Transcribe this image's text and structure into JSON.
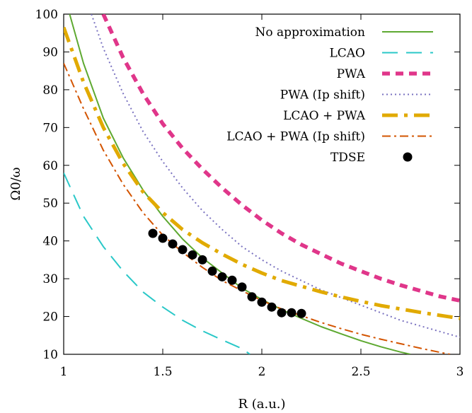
{
  "chart_data": {
    "type": "line",
    "xlabel": "R (a.u.)",
    "ylabel": "Ω0/ω",
    "xlim": [
      1,
      3
    ],
    "ylim": [
      10,
      100
    ],
    "x_ticks": [
      "1",
      "1.5",
      "2",
      "2.5",
      "3"
    ],
    "y_ticks": [
      "10",
      "20",
      "30",
      "40",
      "50",
      "60",
      "70",
      "80",
      "90",
      "100"
    ],
    "grid": false,
    "legend_position": "top-right",
    "series": [
      {
        "name": "No approximation",
        "style": "solid",
        "color": "#5ea931",
        "kind": "line",
        "x": [
          1.03,
          1.1,
          1.2,
          1.3,
          1.4,
          1.5,
          1.6,
          1.7,
          1.8,
          1.9,
          2.0,
          2.1,
          2.2,
          2.3,
          2.4,
          2.5,
          2.6,
          2.7,
          2.75
        ],
        "y": [
          100,
          87,
          72.5,
          62,
          53.5,
          46.5,
          40.5,
          35.5,
          31.5,
          27.5,
          24.5,
          21.8,
          19.5,
          17.3,
          15.4,
          13.6,
          12.0,
          10.6,
          10
        ]
      },
      {
        "name": "LCAO",
        "style": "dashed",
        "color": "#2ac8c8",
        "kind": "line",
        "x": [
          1.0,
          1.1,
          1.2,
          1.3,
          1.4,
          1.5,
          1.6,
          1.7,
          1.8,
          1.9,
          1.94
        ],
        "y": [
          58,
          46.5,
          38.5,
          32,
          26.5,
          22.5,
          19,
          16.2,
          13.8,
          11.5,
          10
        ]
      },
      {
        "name": "PWA",
        "style": "dashed",
        "color": "#e0368a",
        "kind": "line",
        "x": [
          1.2,
          1.3,
          1.4,
          1.5,
          1.6,
          1.7,
          1.8,
          1.9,
          2.0,
          2.1,
          2.2,
          2.3,
          2.4,
          2.5,
          2.6,
          2.7,
          2.8,
          2.9,
          3.0
        ],
        "y": [
          100,
          88.5,
          79,
          71,
          64.5,
          59,
          54,
          49.5,
          45.5,
          42,
          39,
          36.5,
          34,
          32,
          30,
          28.3,
          26.8,
          25.3,
          24.2
        ]
      },
      {
        "name": "PWA (Ip shift)",
        "style": "dotted",
        "color": "#7a72c0",
        "kind": "line",
        "x": [
          1.14,
          1.2,
          1.3,
          1.4,
          1.5,
          1.6,
          1.7,
          1.8,
          1.9,
          2.0,
          2.1,
          2.2,
          2.3,
          2.4,
          2.5,
          2.6,
          2.7,
          2.8,
          2.9,
          3.0
        ],
        "y": [
          100,
          91,
          79,
          69,
          61,
          54,
          48,
          43,
          38.5,
          35,
          32,
          29.5,
          27,
          25,
          23,
          21,
          19,
          17.5,
          16,
          14.5
        ]
      },
      {
        "name": "LCAO + PWA",
        "style": "dashdot",
        "color": "#e1aa00",
        "kind": "line",
        "x": [
          1.0,
          1.1,
          1.2,
          1.3,
          1.4,
          1.5,
          1.6,
          1.7,
          1.8,
          1.9,
          2.0,
          2.1,
          2.2,
          2.3,
          2.4,
          2.5,
          2.6,
          2.7,
          2.8,
          2.9,
          3.0
        ],
        "y": [
          96.5,
          82,
          70,
          60.5,
          53,
          47.5,
          43,
          39.5,
          36.5,
          33.8,
          31.5,
          29.5,
          28,
          26.5,
          25.2,
          24,
          22.9,
          22,
          21.1,
          20.3,
          19.5
        ]
      },
      {
        "name": "LCAO + PWA (Ip shift)",
        "style": "dashdot-thin",
        "color": "#d35400",
        "kind": "line",
        "x": [
          1.0,
          1.1,
          1.2,
          1.3,
          1.4,
          1.5,
          1.6,
          1.7,
          1.8,
          1.9,
          2.0,
          2.1,
          2.2,
          2.3,
          2.4,
          2.5,
          2.6,
          2.7,
          2.8,
          2.9,
          2.95
        ],
        "y": [
          87,
          75,
          64,
          55,
          47.5,
          41.5,
          37,
          33,
          29.5,
          26.8,
          24.2,
          22,
          20.2,
          18.4,
          16.8,
          15.3,
          14,
          12.8,
          11.6,
          10.5,
          10
        ]
      },
      {
        "name": "TDSE",
        "style": "marker",
        "color": "#000000",
        "kind": "scatter",
        "x": [
          1.45,
          1.5,
          1.55,
          1.6,
          1.65,
          1.7,
          1.75,
          1.8,
          1.85,
          1.9,
          1.95,
          2.0,
          2.05,
          2.1,
          2.15,
          2.2
        ],
        "y": [
          42,
          40.7,
          39.2,
          37.7,
          36.3,
          35,
          32,
          30.5,
          29.6,
          27.8,
          25.2,
          23.8,
          22.5,
          21,
          21,
          20.8
        ]
      }
    ]
  }
}
